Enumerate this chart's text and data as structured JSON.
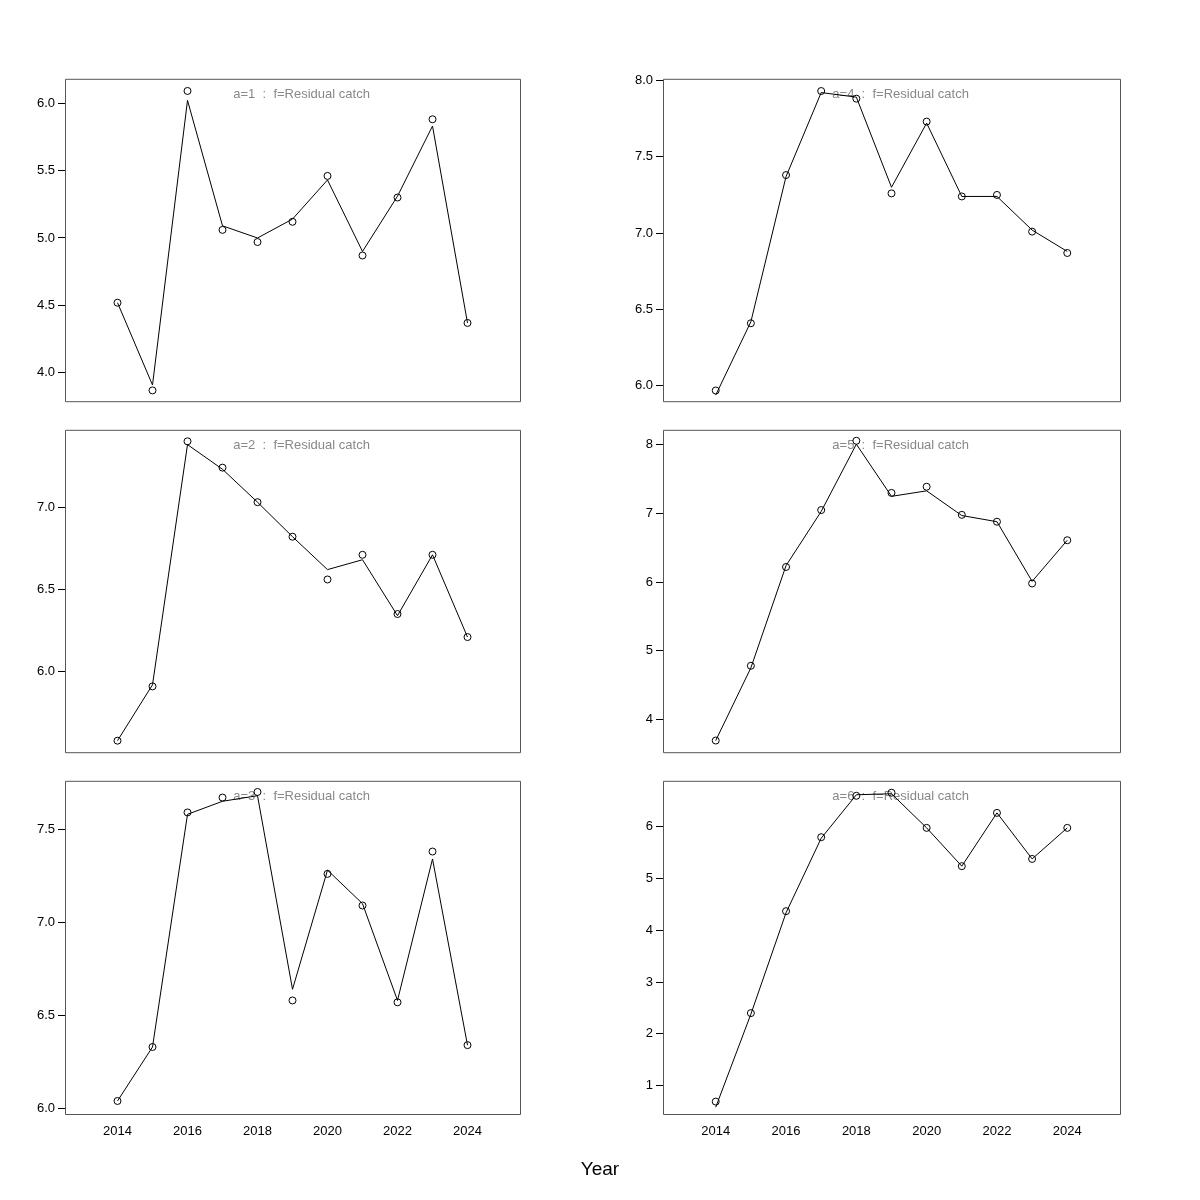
{
  "chart_data": [
    {
      "type": "line",
      "title": "a=1  :  f=Residual catch",
      "x": [
        2014,
        2015,
        2016,
        2017,
        2018,
        2019,
        2020,
        2021,
        2022,
        2023,
        2024
      ],
      "xlim": [
        2012.5,
        2025.5
      ],
      "xticks": [
        2014,
        2016,
        2018,
        2020,
        2022,
        2024
      ],
      "ylim": [
        3.79,
        6.18
      ],
      "yticks": [
        {
          "value": 4,
          "label": "4.0"
        },
        4.5,
        {
          "value": 5,
          "label": "5.0"
        },
        5.5,
        {
          "value": 6,
          "label": "6.0"
        }
      ],
      "tick_labels": "y",
      "grid": false,
      "legend": false,
      "series": [
        {
          "type": "scatter",
          "marker": "circle",
          "color": "#000000",
          "values": [
            4.52,
            3.87,
            6.09,
            5.06,
            4.97,
            5.12,
            5.46,
            4.87,
            5.3,
            5.88,
            4.37
          ]
        },
        {
          "type": "line",
          "marker": "none",
          "line_style": "solid",
          "color": "#000000",
          "values": [
            4.52,
            3.91,
            6.02,
            5.09,
            5.0,
            5.14,
            5.43,
            4.9,
            5.31,
            5.83,
            4.37
          ]
        }
      ]
    },
    {
      "type": "line",
      "title": "a=4  :  f=Residual catch",
      "x": [
        2014,
        2015,
        2016,
        2017,
        2018,
        2019,
        2020,
        2021,
        2022,
        2023,
        2024
      ],
      "xlim": [
        2012.5,
        2025.5
      ],
      "xticks": [
        2014,
        2016,
        2018,
        2020,
        2022,
        2024
      ],
      "ylim": [
        5.9,
        8.01
      ],
      "yticks": [
        {
          "value": 6,
          "label": "6.0"
        },
        6.5,
        {
          "value": 7,
          "label": "7.0"
        },
        7.5,
        {
          "value": 8,
          "label": "8.0"
        }
      ],
      "tick_labels": "y",
      "grid": false,
      "legend": false,
      "series": [
        {
          "type": "scatter",
          "marker": "circle",
          "color": "#000000",
          "values": [
            5.97,
            6.41,
            7.38,
            7.93,
            7.88,
            7.26,
            7.73,
            7.24,
            7.25,
            7.01,
            6.87
          ]
        },
        {
          "type": "line",
          "marker": "none",
          "line_style": "solid",
          "color": "#000000",
          "values": [
            5.94,
            6.42,
            7.37,
            7.92,
            7.89,
            7.3,
            7.72,
            7.24,
            7.24,
            7.02,
            6.88
          ]
        }
      ]
    },
    {
      "type": "line",
      "title": "a=2  :  f=Residual catch",
      "x": [
        2014,
        2015,
        2016,
        2017,
        2018,
        2019,
        2020,
        2021,
        2022,
        2023,
        2024
      ],
      "xlim": [
        2012.5,
        2025.5
      ],
      "xticks": [
        2014,
        2016,
        2018,
        2020,
        2022,
        2024
      ],
      "ylim": [
        5.51,
        7.47
      ],
      "yticks": [
        {
          "value": 6,
          "label": "6.0"
        },
        6.5,
        {
          "value": 7,
          "label": "7.0"
        }
      ],
      "tick_labels": "y",
      "grid": false,
      "legend": false,
      "series": [
        {
          "type": "scatter",
          "marker": "circle",
          "color": "#000000",
          "values": [
            5.58,
            5.91,
            7.4,
            7.24,
            7.03,
            6.82,
            6.56,
            6.71,
            6.35,
            6.71,
            6.21
          ]
        },
        {
          "type": "line",
          "marker": "none",
          "line_style": "solid",
          "color": "#000000",
          "values": [
            5.58,
            5.92,
            7.38,
            7.23,
            7.03,
            6.82,
            6.62,
            6.68,
            6.34,
            6.71,
            6.21
          ]
        }
      ]
    },
    {
      "type": "line",
      "title": "a=5  :  f=Residual catch",
      "x": [
        2014,
        2015,
        2016,
        2017,
        2018,
        2019,
        2020,
        2021,
        2022,
        2023,
        2024
      ],
      "xlim": [
        2012.5,
        2025.5
      ],
      "xticks": [
        2014,
        2016,
        2018,
        2020,
        2022,
        2024
      ],
      "ylim": [
        3.52,
        8.22
      ],
      "yticks": [
        4,
        5,
        6,
        7,
        8
      ],
      "tick_labels": "y",
      "grid": false,
      "legend": false,
      "series": [
        {
          "type": "scatter",
          "marker": "circle",
          "color": "#000000",
          "values": [
            3.69,
            4.78,
            6.22,
            7.05,
            8.06,
            7.3,
            7.39,
            6.98,
            6.88,
            5.98,
            6.61
          ]
        },
        {
          "type": "line",
          "marker": "none",
          "line_style": "solid",
          "color": "#000000",
          "values": [
            3.69,
            4.75,
            6.24,
            7.03,
            8.01,
            7.25,
            7.33,
            6.97,
            6.88,
            6.01,
            6.61
          ]
        }
      ]
    },
    {
      "type": "line",
      "title": "a=3  :  f=Residual catch",
      "x": [
        2014,
        2015,
        2016,
        2017,
        2018,
        2019,
        2020,
        2021,
        2022,
        2023,
        2024
      ],
      "xlim": [
        2012.5,
        2025.5
      ],
      "xticks": [
        2014,
        2016,
        2018,
        2020,
        2022,
        2024
      ],
      "ylim": [
        5.97,
        7.76
      ],
      "yticks": [
        {
          "value": 6,
          "label": "6.0"
        },
        6.5,
        {
          "value": 7,
          "label": "7.0"
        },
        7.5
      ],
      "grid": false,
      "legend": false,
      "series": [
        {
          "type": "scatter",
          "marker": "circle",
          "color": "#000000",
          "values": [
            6.04,
            6.33,
            7.59,
            7.67,
            7.7,
            6.58,
            7.26,
            7.09,
            6.57,
            7.38,
            6.34
          ]
        },
        {
          "type": "line",
          "marker": "none",
          "line_style": "solid",
          "color": "#000000",
          "values": [
            6.04,
            6.33,
            7.58,
            7.65,
            7.68,
            6.64,
            7.28,
            7.1,
            6.58,
            7.34,
            6.34
          ]
        }
      ]
    },
    {
      "type": "line",
      "title": "a=6  :  f=Residual catch",
      "xlabel": "Year",
      "x": [
        2014,
        2015,
        2016,
        2017,
        2018,
        2019,
        2020,
        2021,
        2022,
        2023,
        2024
      ],
      "xlim": [
        2012.5,
        2025.5
      ],
      "xticks": [
        2014,
        2016,
        2018,
        2020,
        2022,
        2024
      ],
      "ylim": [
        0.45,
        6.89
      ],
      "yticks": [
        1,
        2,
        3,
        4,
        5,
        6
      ],
      "grid": false,
      "legend": false,
      "series": [
        {
          "type": "scatter",
          "marker": "circle",
          "color": "#000000",
          "values": [
            0.69,
            2.4,
            4.37,
            5.8,
            6.6,
            6.66,
            5.98,
            5.24,
            6.27,
            5.38,
            5.98
          ]
        },
        {
          "type": "line",
          "marker": "none",
          "line_style": "solid",
          "color": "#000000",
          "values": [
            0.58,
            2.38,
            4.34,
            5.78,
            6.62,
            6.64,
            5.98,
            5.24,
            6.27,
            5.38,
            5.98
          ]
        }
      ]
    }
  ]
}
